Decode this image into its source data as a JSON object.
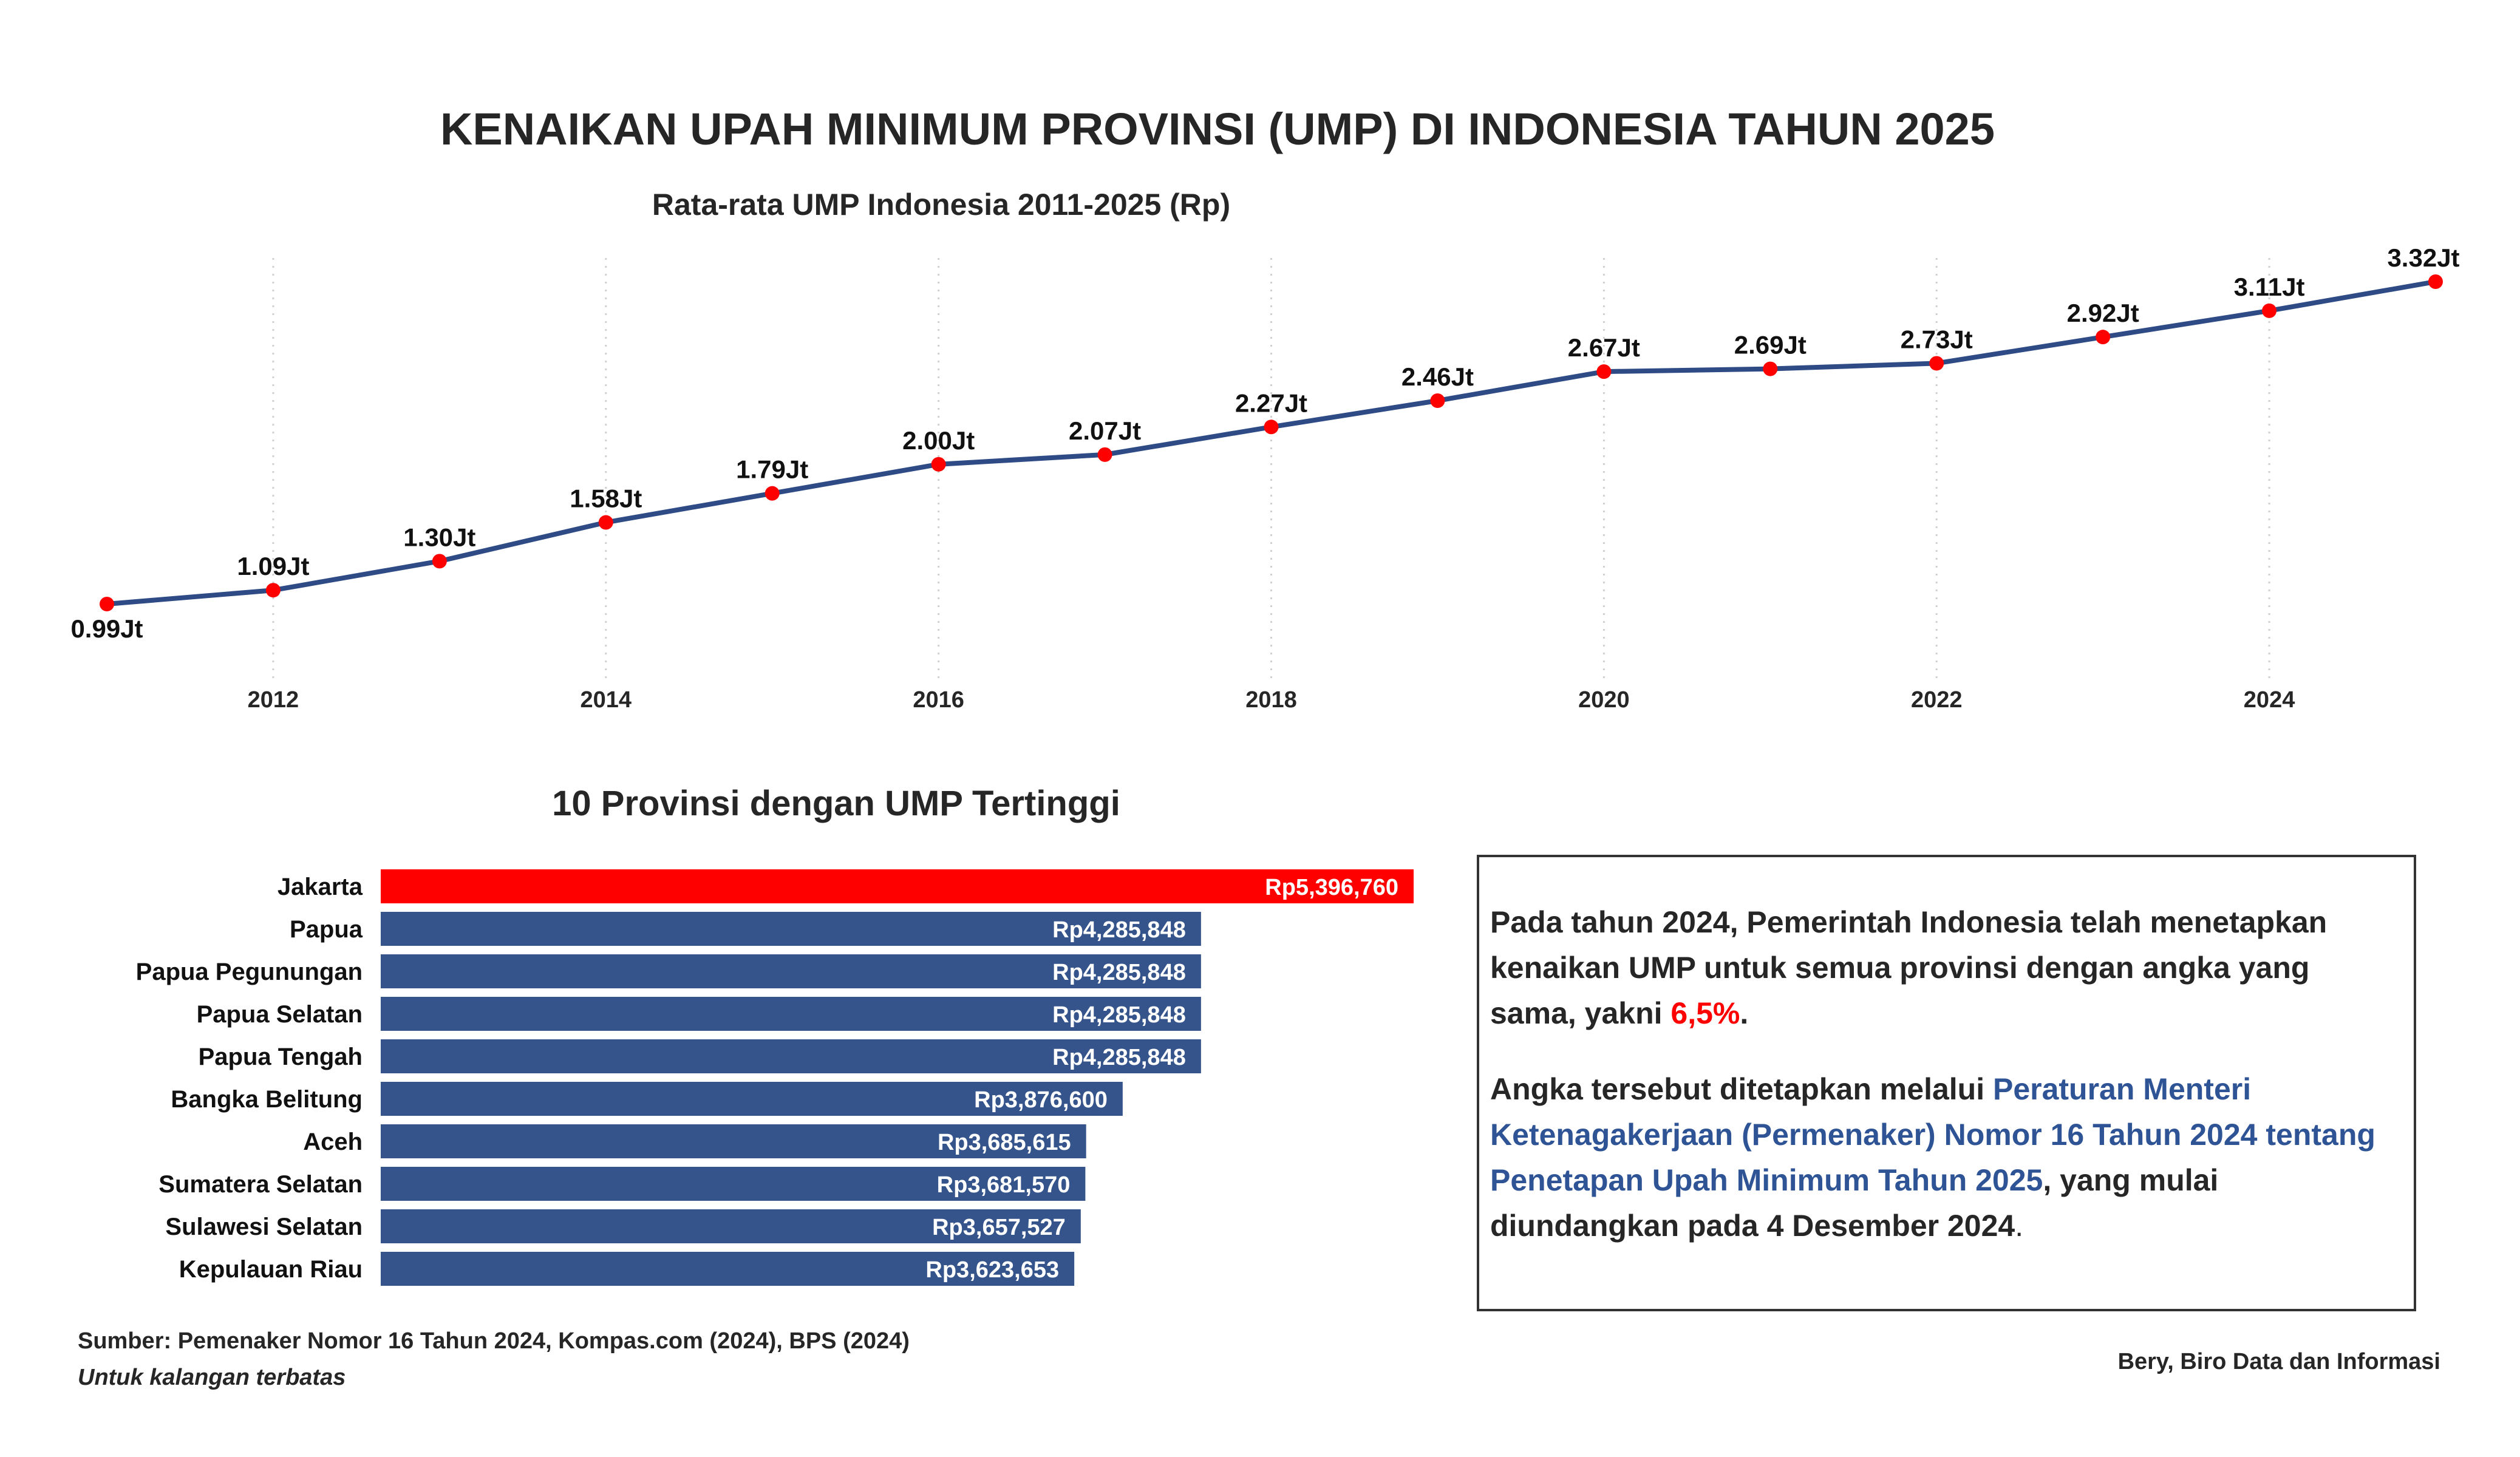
{
  "title": "KENAIKAN UPAH MINIMUM PROVINSI (UMP) DI INDONESIA TAHUN 2025",
  "chart_data": [
    {
      "type": "line",
      "title": "Rata-rata UMP Indonesia 2011-2025 (Rp)",
      "xlabel": "",
      "ylabel": "",
      "x": [
        2011,
        2012,
        2013,
        2014,
        2015,
        2016,
        2017,
        2018,
        2019,
        2020,
        2021,
        2022,
        2023,
        2024,
        2025
      ],
      "values": [
        0.99,
        1.09,
        1.3,
        1.58,
        1.79,
        2.0,
        2.07,
        2.27,
        2.46,
        2.67,
        2.69,
        2.73,
        2.92,
        3.11,
        3.32
      ],
      "data_labels": [
        "0.99Jt",
        "1.09Jt",
        "1.30Jt",
        "1.58Jt",
        "1.79Jt",
        "2.00Jt",
        "2.07Jt",
        "2.27Jt",
        "2.46Jt",
        "2.67Jt",
        "2.69Jt",
        "2.73Jt",
        "2.92Jt",
        "3.11Jt",
        "3.32Jt"
      ],
      "x_ticks": [
        "2012",
        "2014",
        "2016",
        "2018",
        "2020",
        "2022",
        "2024"
      ],
      "x_tick_values": [
        2012,
        2014,
        2016,
        2018,
        2020,
        2022,
        2024
      ],
      "grid": "vertical dotted at ticks",
      "line_color": "#2f4b86",
      "marker_color": "#ff0000"
    },
    {
      "type": "bar",
      "orientation": "horizontal",
      "title": "10 Provinsi dengan UMP Tertinggi",
      "categories": [
        "Jakarta",
        "Papua",
        "Papua Pegunungan",
        "Papua Selatan",
        "Papua Tengah",
        "Bangka Belitung",
        "Aceh",
        "Sumatera Selatan",
        "Sulawesi Selatan",
        "Kepulauan Riau"
      ],
      "values": [
        5396760,
        4285848,
        4285848,
        4285848,
        4285848,
        3876600,
        3685615,
        3681570,
        3657527,
        3623653
      ],
      "data_labels": [
        "Rp5,396,760",
        "Rp4,285,848",
        "Rp4,285,848",
        "Rp4,285,848",
        "Rp4,285,848",
        "Rp3,876,600",
        "Rp3,685,615",
        "Rp3,681,570",
        "Rp3,657,527",
        "Rp3,623,653"
      ],
      "colors": [
        "#ff0000",
        "#34548b",
        "#34548b",
        "#34548b",
        "#34548b",
        "#34548b",
        "#34548b",
        "#34548b",
        "#34548b",
        "#34548b"
      ]
    }
  ],
  "info": {
    "p1_a": "Pada tahun 2024, Pemerintah Indonesia telah menetapkan kenaikan UMP untuk semua provinsi dengan angka yang sama, yakni ",
    "p1_highlight": "6,5%",
    "p1_b": ".",
    "p2_a": "Angka tersebut ditetapkan melalui ",
    "p2_link": "Peraturan Menteri Ketenagakerjaan (Permenaker) Nomor 16 Tahun 2024 tentang Penetapan Upah Minimum Tahun 2025",
    "p2_b": ", yang mulai diundangkan pada 4 Desember 2024",
    "p2_c": ".",
    "highlight_color": "#ff0000",
    "link_color": "#2f5496"
  },
  "footer": {
    "source": "Sumber: Pemenaker Nomor 16 Tahun 2024, Kompas.com (2024), BPS (2024)",
    "note": "Untuk kalangan terbatas",
    "credit": "Bery, Biro Data dan Informasi"
  }
}
